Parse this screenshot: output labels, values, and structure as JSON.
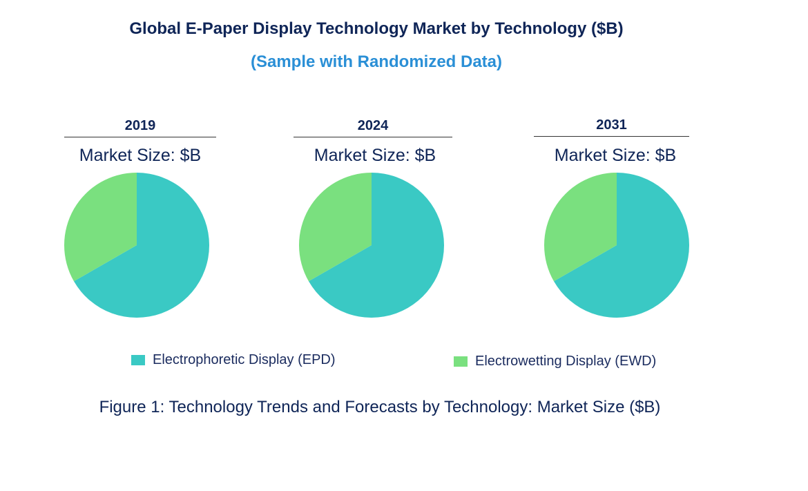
{
  "title": "Global E-Paper Display Technology Market by Technology ($B)",
  "subtitle": "(Sample with Randomized Data)",
  "caption": "Figure 1: Technology Trends and Forecasts by Technology: Market Size ($B)",
  "chart_data": {
    "type": "pie",
    "colors": {
      "Electrophoretic Display (EPD)": "#3ac9c4",
      "Electrowetting Display (EWD)": "#7ae07f"
    },
    "legend_placement": "bottom",
    "legend": [
      "Electrophoretic Display (EPD)",
      "Electrowetting Display (EWD)"
    ],
    "pies": [
      {
        "year": "2019",
        "label": "Market Size: $B",
        "slices": [
          {
            "name": "Electrophoretic Display (EPD)",
            "value": 66.7
          },
          {
            "name": "Electrowetting Display (EWD)",
            "value": 33.3
          }
        ]
      },
      {
        "year": "2024",
        "label": "Market Size: $B",
        "slices": [
          {
            "name": "Electrophoretic Display (EPD)",
            "value": 66.7
          },
          {
            "name": "Electrowetting Display (EWD)",
            "value": 33.3
          }
        ]
      },
      {
        "year": "2031",
        "label": "Market Size: $B",
        "slices": [
          {
            "name": "Electrophoretic Display (EPD)",
            "value": 66.7
          },
          {
            "name": "Electrowetting Display (EWD)",
            "value": 33.3
          }
        ]
      }
    ]
  }
}
